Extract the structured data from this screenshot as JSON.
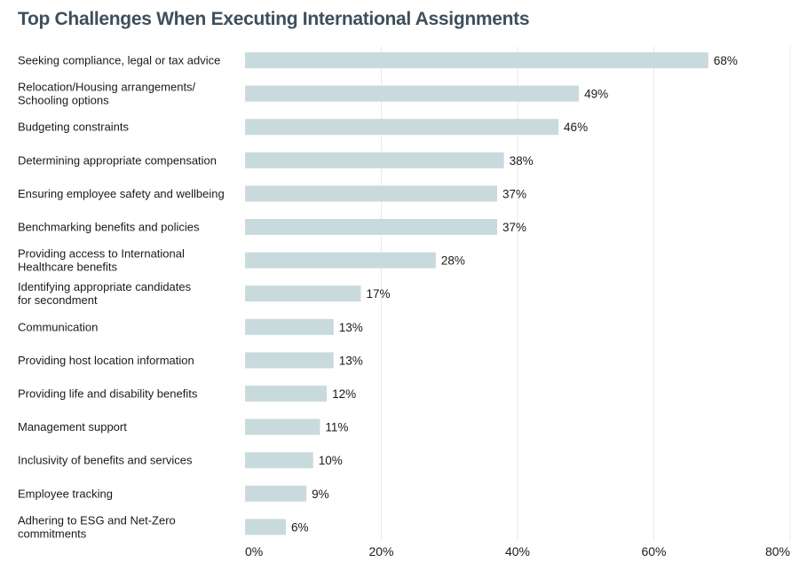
{
  "chart_data": {
    "type": "bar",
    "orientation": "horizontal",
    "title": "Top Challenges When Executing International Assignments",
    "categories": [
      [
        "Seeking compliance, legal or tax advice"
      ],
      [
        "Relocation/Housing arrangements/",
        "Schooling options"
      ],
      [
        "Budgeting constraints"
      ],
      [
        "Determining appropriate compensation"
      ],
      [
        "Ensuring employee safety and wellbeing"
      ],
      [
        "Benchmarking benefits and policies"
      ],
      [
        "Providing access to International",
        "Healthcare benefits"
      ],
      [
        "Identifying appropriate candidates",
        "for secondment"
      ],
      [
        "Communication"
      ],
      [
        "Providing host location information"
      ],
      [
        "Providing life and disability benefits"
      ],
      [
        "Management support"
      ],
      [
        "Inclusivity of benefits and services"
      ],
      [
        "Employee tracking"
      ],
      [
        "Adhering to ESG and Net-Zero",
        "commitments"
      ]
    ],
    "values": [
      68,
      49,
      46,
      38,
      37,
      37,
      28,
      17,
      13,
      13,
      12,
      11,
      10,
      9,
      6
    ],
    "value_labels": [
      "68%",
      "49%",
      "46%",
      "38%",
      "37%",
      "37%",
      "28%",
      "17%",
      "13%",
      "13%",
      "12%",
      "11%",
      "10%",
      "9%",
      "6%"
    ],
    "xlim": [
      0,
      80
    ],
    "xticks": [
      0,
      20,
      40,
      60,
      80
    ],
    "xtick_labels": [
      "0%",
      "20%",
      "40%",
      "60%",
      "80%"
    ],
    "xlabel": "",
    "ylabel": "",
    "grid": true,
    "colors": {
      "bar": "#c9dadd",
      "grid": "#e6ebee",
      "title": "#3e4f5c",
      "text": "#1a1a1a"
    }
  }
}
